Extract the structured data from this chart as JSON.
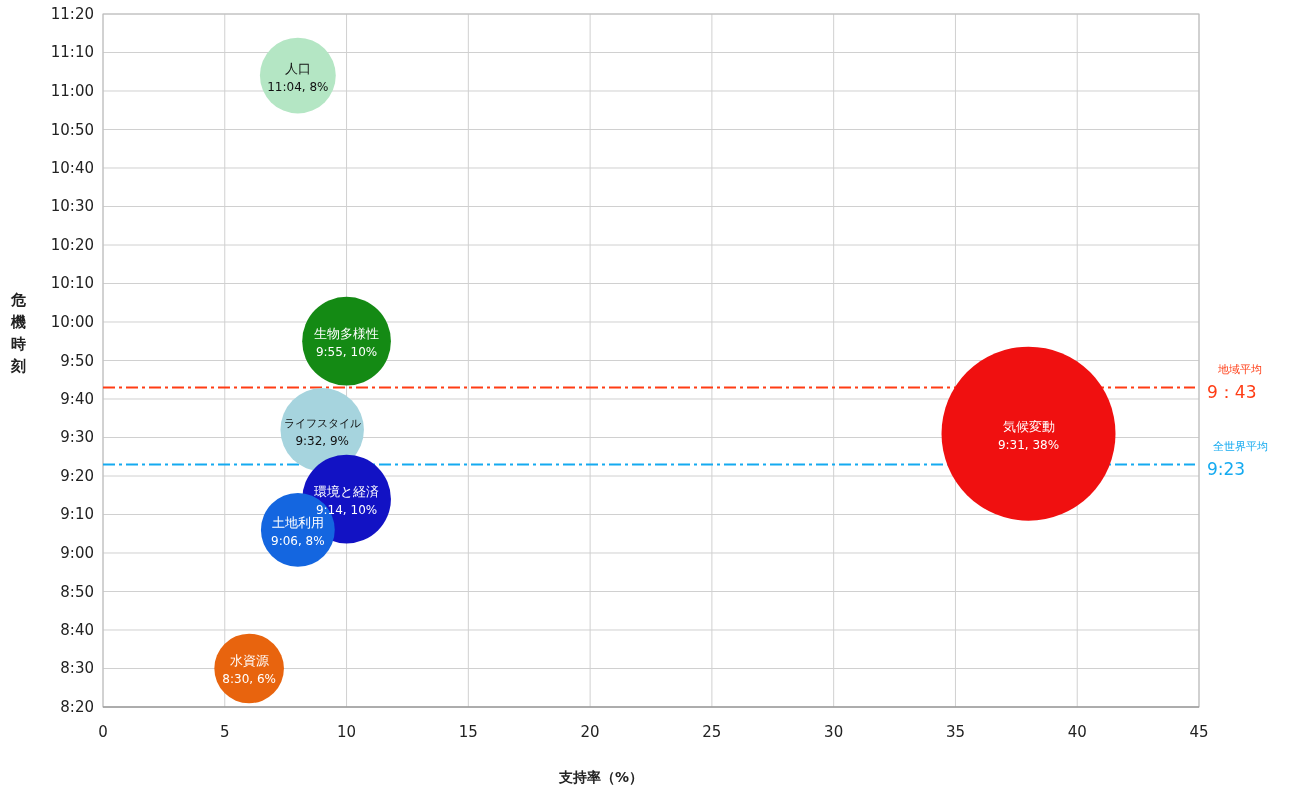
{
  "chart_data": {
    "type": "bubble",
    "xlabel": "支持率（%）",
    "ylabel": "危機時刻",
    "xlim": [
      0,
      45
    ],
    "xticks": [
      0,
      5,
      10,
      15,
      20,
      25,
      30,
      35,
      40,
      45
    ],
    "ylim": [
      8.3333,
      11.3333
    ],
    "yticks": [
      {
        "value": 8.3333,
        "label": "8:20"
      },
      {
        "value": 8.5,
        "label": "8:30"
      },
      {
        "value": 8.6667,
        "label": "8:40"
      },
      {
        "value": 8.8333,
        "label": "8:50"
      },
      {
        "value": 9,
        "label": "9:00"
      },
      {
        "value": 9.1667,
        "label": "9:10"
      },
      {
        "value": 9.3333,
        "label": "9:20"
      },
      {
        "value": 9.5,
        "label": "9:30"
      },
      {
        "value": 9.6667,
        "label": "9:40"
      },
      {
        "value": 9.8333,
        "label": "9:50"
      },
      {
        "value": 10,
        "label": "10:00"
      },
      {
        "value": 10.1667,
        "label": "10:10"
      },
      {
        "value": 10.3333,
        "label": "10:20"
      },
      {
        "value": 10.5,
        "label": "10:30"
      },
      {
        "value": 10.6667,
        "label": "10:40"
      },
      {
        "value": 10.8333,
        "label": "10:50"
      },
      {
        "value": 11,
        "label": "11:00"
      },
      {
        "value": 11.1667,
        "label": "11:10"
      },
      {
        "value": 11.3333,
        "label": "11:20"
      }
    ],
    "grid": true,
    "legend": false,
    "marker": "circle",
    "series": [
      {
        "name": "人口",
        "color": "#b4e6c4",
        "x": [
          8
        ],
        "values": [
          11.0667
        ],
        "sizes": [
          0.19
        ],
        "value_labels": [
          "11:04, 8%"
        ]
      },
      {
        "name": "生物多様性",
        "color": "#148a14",
        "x": [
          10
        ],
        "values": [
          9.9167
        ],
        "sizes": [
          0.26
        ],
        "value_labels": [
          "9:55, 10%"
        ]
      },
      {
        "name": "ライフスタイル",
        "color": "#a6d4de",
        "x": [
          9
        ],
        "values": [
          9.5333
        ],
        "sizes": [
          0.23
        ],
        "value_labels": [
          "9:32, 9%"
        ]
      },
      {
        "name": "環境と経済",
        "color": "#1212c4",
        "x": [
          10
        ],
        "values": [
          9.2333
        ],
        "sizes": [
          0.26
        ],
        "value_labels": [
          "9:14, 10%"
        ]
      },
      {
        "name": "土地利用",
        "color": "#1466e0",
        "x": [
          8
        ],
        "values": [
          9.1
        ],
        "sizes": [
          0.18
        ],
        "value_labels": [
          "9:06, 8%"
        ]
      },
      {
        "name": "水資源",
        "color": "#e8640e",
        "x": [
          6
        ],
        "values": [
          8.5
        ],
        "sizes": [
          0.16
        ],
        "value_labels": [
          "8:30, 6%"
        ]
      },
      {
        "name": "気候変動",
        "color": "#f01010",
        "x": [
          38
        ],
        "values": [
          9.5167
        ],
        "sizes": [
          1
        ],
        "value_labels": [
          "9:31, 38%"
        ]
      }
    ],
    "ref_lines": [
      {
        "axis": "y",
        "value": 9.7167,
        "label": "地域平均",
        "color": "#ff3c14",
        "line_style": "dashdot"
      },
      {
        "axis": "y",
        "value": 9.3833,
        "label": "全世界平均",
        "color": "#14aaf0",
        "line_style": "dashdot"
      }
    ],
    "annotations": [
      {
        "text": "9：43",
        "x": 45,
        "y": 9.7167
      },
      {
        "text": "9:23",
        "x": 45,
        "y": 9.3833
      }
    ]
  }
}
